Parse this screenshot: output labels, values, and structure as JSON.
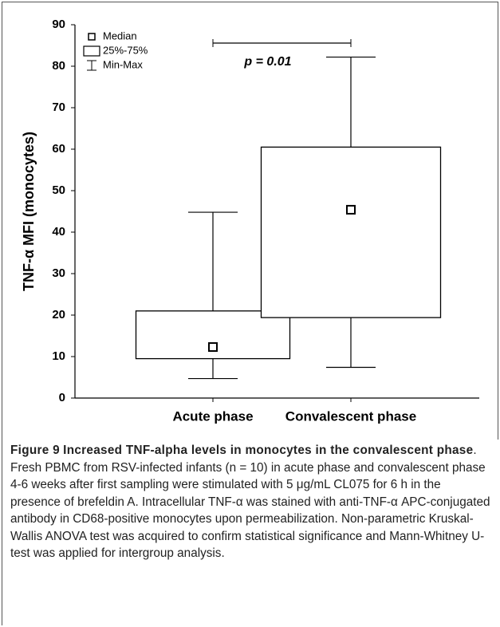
{
  "chart_data": {
    "type": "box",
    "categories": [
      "Acute phase",
      "Convalescent phase"
    ],
    "min": [
      4.7,
      7.4
    ],
    "q1": [
      9.5,
      19.4
    ],
    "median": [
      12.3,
      45.4
    ],
    "q3": [
      21,
      60.5
    ],
    "max": [
      44.8,
      82.2
    ],
    "color": "#000000",
    "ylabel": "TNF-α MFI (monocytes)",
    "ylim": [
      0,
      90
    ],
    "yticks": [
      0,
      10,
      20,
      30,
      40,
      50,
      60,
      70,
      80,
      90
    ],
    "legend": [
      "Median",
      "25%-75%",
      "Min-Max"
    ],
    "annotation": "p = 0.01"
  },
  "caption": {
    "label": "Figure 9",
    "title": "Increased TNF-alpha levels in monocytes in the convalescent phase",
    "text": ". Fresh PBMC from RSV-infected infants (n = 10) in acute phase and convalescent phase 4-6 weeks after first sampling were stimulated with 5 μg/mL CL075 for 6 h in the presence of brefeldin A. Intracellular TNF-α was stained with anti-TNF-α APC-conjugated antibody in CD68-positive monocytes upon permeabilization. Non-parametric Kruskal-Wallis ANOVA test was acquired to confirm statistical significance and Mann-Whitney U-test was applied for intergroup analysis."
  }
}
